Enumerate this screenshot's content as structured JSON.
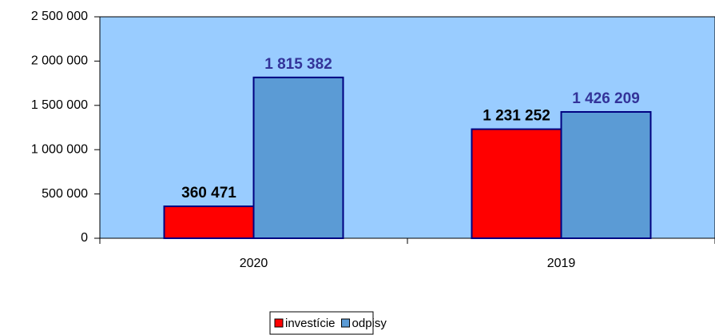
{
  "chart_data": {
    "type": "bar",
    "categories": [
      "2020",
      "2019"
    ],
    "series": [
      {
        "name": "investície",
        "color": "#ff0000",
        "label_color": "#000000",
        "values": [
          360471,
          1231252
        ],
        "value_labels": [
          "360 471",
          "1 231 252"
        ]
      },
      {
        "name": "odpisy",
        "color": "#5b9bd5",
        "label_color": "#333399",
        "values": [
          1815382,
          1426209
        ],
        "value_labels": [
          "1 815 382",
          "1 426 209"
        ]
      }
    ],
    "ylim": [
      0,
      2500000
    ],
    "yticks": [
      0,
      {
        "value": 500000,
        "label": "500 000"
      },
      {
        "value": 1000000,
        "label": "1 000 000"
      },
      {
        "value": 1500000,
        "label": "1 500 000"
      },
      {
        "value": 2000000,
        "label": "2 000 000"
      },
      {
        "value": 2500000,
        "label": "2 500 000"
      }
    ],
    "plot_background": "#99ccff",
    "legend": "bottom"
  }
}
